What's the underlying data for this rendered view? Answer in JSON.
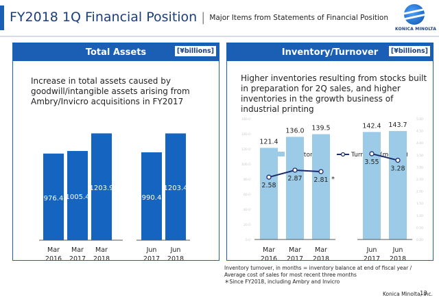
{
  "header": {
    "title": "FY2018 1Q Financial Position",
    "separator": "|",
    "subtitle": "Major Items from Statements of Financial Position"
  },
  "logo": {
    "text": "KONICA MINOLTA",
    "icon": "konica-minolta-globe-icon"
  },
  "colors": {
    "accent": "#1a5fb4",
    "bar_dark": "#1565c0",
    "bar_light": "#9ccbe8",
    "line": "#1a2b6b"
  },
  "left_panel": {
    "title": "Total Assets",
    "unit": "[¥billions]",
    "description": "Increase in total assets caused by goodwill/intangible assets arising from Ambry/Invicro acquisitions in FY2017"
  },
  "right_panel": {
    "title": "Inventory/Turnover",
    "unit": "[¥billions]",
    "description": "Higher inventories resulting from stocks built in preparation for 2Q sales, and higher inventories in the growth business of industrial printing"
  },
  "chart_data": [
    {
      "type": "bar",
      "categories": [
        [
          "Mar",
          "2016"
        ],
        [
          "Mar",
          "2017"
        ],
        [
          "Mar",
          "2018"
        ],
        [
          "Jun",
          "2017"
        ],
        [
          "Jun",
          "2018"
        ]
      ],
      "values": [
        976.4,
        1005.4,
        1203.9,
        990.4,
        1203.4
      ],
      "value_labels": [
        "976.4",
        "1005.4",
        "1203.9",
        "990.4",
        "1203.4"
      ],
      "ylim": [
        0,
        1400
      ]
    },
    {
      "type": "bar+line",
      "categories": [
        [
          "Mar",
          "2016"
        ],
        [
          "Mar",
          "2017"
        ],
        [
          "Mar",
          "2018"
        ],
        [
          "Jun",
          "2017"
        ],
        [
          "Jun",
          "2018"
        ]
      ],
      "legend": [
        "Inventories",
        "Turnover (months)"
      ],
      "legend_placement": "top",
      "series": [
        {
          "name": "Inventories",
          "type": "bar",
          "values": [
            121.4,
            136.0,
            139.5,
            142.4,
            143.7
          ],
          "labels": [
            "121.4",
            "136.0",
            "139.5",
            "142.4",
            "143.7"
          ]
        },
        {
          "name": "Turnover (months)",
          "type": "line",
          "values": [
            2.58,
            2.87,
            2.81,
            3.55,
            3.28
          ],
          "labels": [
            "2.58",
            "2.87",
            "2.81",
            "3.55",
            "3.28"
          ],
          "line_segments": [
            [
              0,
              1,
              2
            ],
            [
              3,
              4
            ]
          ]
        }
      ],
      "annotation": {
        "index": 2,
        "text": "*"
      },
      "y_left_ticks": [
        "0.0",
        "20.0",
        "40.0",
        "60.0",
        "80.0",
        "100.0",
        "120.0",
        "140.0",
        "160.0"
      ],
      "y_right_ticks": [
        "0.00",
        "0.50",
        "1.00",
        "1.50",
        "2.00",
        "2.50",
        "3.00",
        "3.50",
        "4.00",
        "4.50",
        "5.00"
      ],
      "ylim_left": [
        0,
        160
      ],
      "ylim_right": [
        0,
        5
      ]
    }
  ],
  "footnote": {
    "line1": "Inventory turnover, in months = inventory balance at end of fiscal year /",
    "line2": "Average cost of sales for most recent three months",
    "line3": "＊Since FY2018, including Ambry and Invicro"
  },
  "footer": {
    "company": "Konica Minolta, Inc.",
    "page": "13"
  }
}
